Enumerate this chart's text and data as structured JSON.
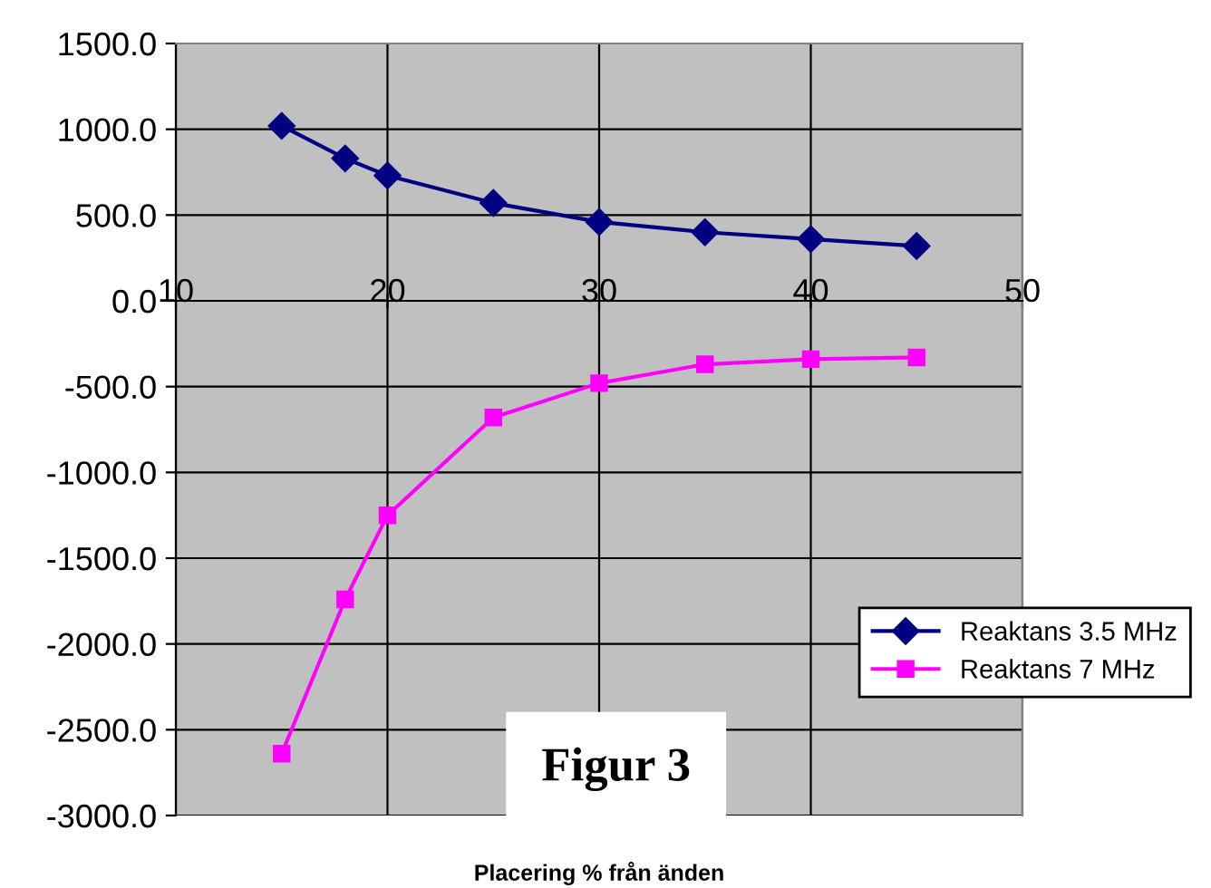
{
  "chart_data": {
    "type": "line",
    "xlabel": "Placering % från änden",
    "x": [
      15,
      18,
      20,
      25,
      30,
      35,
      40,
      45
    ],
    "series": [
      {
        "name": "Reaktans 3.5 MHz",
        "color": "#000080",
        "marker": "diamond",
        "values": [
          1020,
          830,
          730,
          570,
          460,
          400,
          360,
          320
        ]
      },
      {
        "name": "Reaktans 7 MHz",
        "color": "#ff00ff",
        "marker": "square",
        "values": [
          -2640,
          -1740,
          -1250,
          -680,
          -480,
          -370,
          -340,
          -330
        ]
      }
    ],
    "xlim": [
      10,
      50
    ],
    "xticks": [
      10,
      20,
      30,
      40,
      50
    ],
    "ylim": [
      -3000,
      1500
    ],
    "yticks": [
      {
        "value": -3000,
        "label": "-3000.0"
      },
      {
        "value": -2500,
        "label": "-2500.0"
      },
      {
        "value": -2000,
        "label": "-2000.0"
      },
      {
        "value": -1500,
        "label": "-1500.0"
      },
      {
        "value": -1000,
        "label": "-1000.0"
      },
      {
        "value": -500,
        "label": "-500.0"
      },
      {
        "value": 0,
        "label": "0.0"
      },
      {
        "value": 500,
        "label": "500.0"
      },
      {
        "value": 1000,
        "label": "1000.0"
      },
      {
        "value": 1500,
        "label": "1500.0"
      }
    ],
    "grid": true,
    "legend": "bottom right",
    "annotations": [
      "Figur 3"
    ]
  }
}
